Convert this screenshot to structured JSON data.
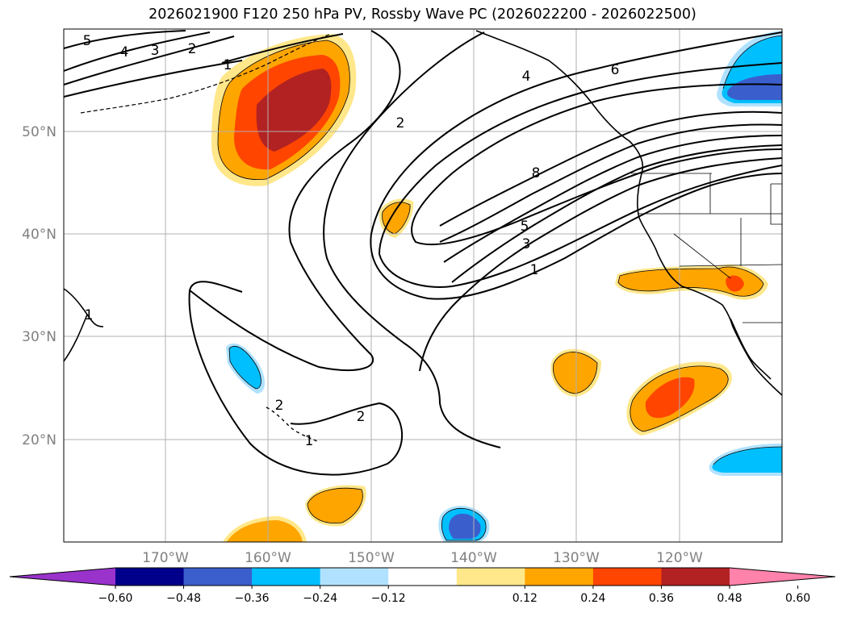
{
  "title": "2026021900 F120 250 hPa PV, Rossby Wave PC (2026022200 - 2026022500)",
  "latitude_labels": [
    "50°N",
    "40°N",
    "30°N",
    "20°N"
  ],
  "longitude_labels": [
    "170°W",
    "160°W",
    "150°W",
    "140°W",
    "130°W",
    "120°W"
  ],
  "contour_labels": [
    "5",
    "4",
    "3",
    "2",
    "1",
    "2",
    "4",
    "6",
    "8",
    "5",
    "3",
    "1",
    "1",
    "2",
    "2",
    "1"
  ],
  "colorbar": {
    "tick_labels": [
      "−0.60",
      "−0.48",
      "−0.36",
      "−0.24",
      "−0.12",
      "0.12",
      "0.24",
      "0.36",
      "0.48",
      "0.60"
    ],
    "colors": [
      "#9933cc",
      "#00008b",
      "#3a5fcd",
      "#00bfff",
      "#b0e2ff",
      "#ffffff",
      "#ffe78a",
      "#ffa500",
      "#ff4500",
      "#b22222",
      "#ff82ab"
    ]
  }
}
